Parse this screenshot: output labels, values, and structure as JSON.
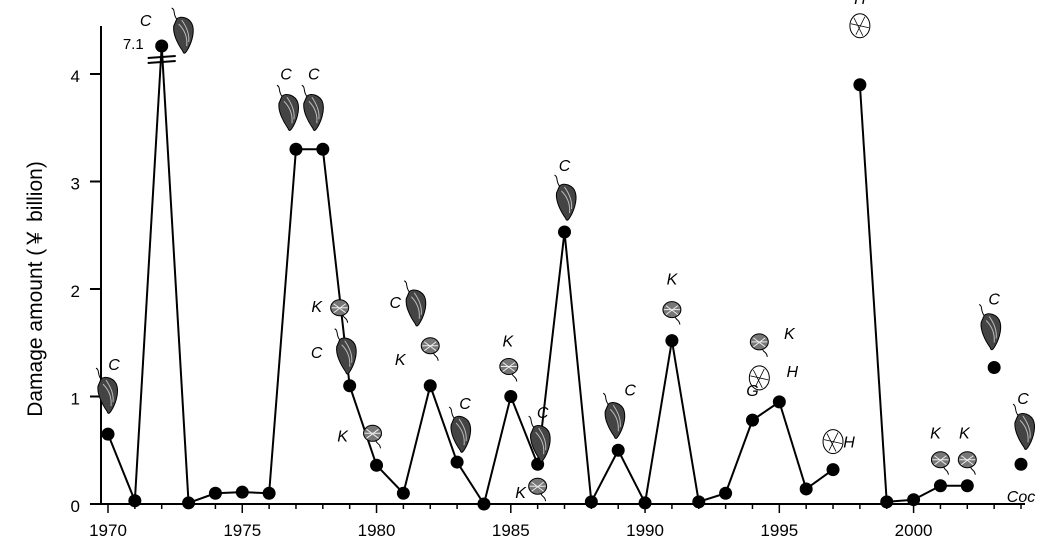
{
  "chart_data": {
    "type": "line",
    "title": "",
    "xlabel": "",
    "ylabel": "Damage amount (￥ billion)",
    "xlim": [
      1970,
      2004
    ],
    "ylim": [
      0,
      4
    ],
    "x_ticks": [
      1970,
      1975,
      1980,
      1985,
      1990,
      1995,
      2000
    ],
    "y_ticks": [
      0,
      1,
      2,
      3,
      4
    ],
    "axis_break_label": "7.1",
    "grid": false,
    "series": [
      {
        "x": [
          1970,
          1971,
          1972,
          1973,
          1974,
          1975,
          1976,
          1977,
          1978,
          1979,
          1980,
          1981,
          1982,
          1983,
          1984,
          1985,
          1986,
          1987,
          1988,
          1989,
          1990,
          1991,
          1992,
          1993,
          1994,
          1995,
          1996,
          1997,
          1998,
          1999,
          2000,
          2001,
          2002,
          2003,
          2004
        ],
        "y": [
          0.65,
          0.03,
          7.1,
          0.01,
          0.1,
          0.11,
          0.1,
          3.3,
          3.3,
          1.1,
          0.36,
          0.1,
          1.1,
          0.39,
          0.0,
          1.0,
          0.37,
          2.53,
          0.02,
          0.5,
          0.01,
          1.52,
          0.02,
          0.1,
          0.78,
          0.95,
          0.14,
          0.32,
          3.9,
          0.02,
          0.04,
          0.17,
          0.17,
          1.27,
          0.37
        ],
        "connected": [
          1,
          1,
          1,
          1,
          1,
          1,
          1,
          1,
          1,
          1,
          1,
          1,
          1,
          1,
          1,
          1,
          1,
          1,
          1,
          1,
          1,
          1,
          1,
          1,
          1,
          1,
          1,
          0,
          1,
          1,
          1,
          1,
          0,
          0
        ]
      }
    ],
    "annotations": [
      {
        "text": "C",
        "x": 1970,
        "y": 0.65
      },
      {
        "text": "C",
        "x": 1972,
        "y": 7.1
      },
      {
        "text": "C",
        "x": 1977,
        "y": 3.3
      },
      {
        "text": "C",
        "x": 1978,
        "y": 3.3
      },
      {
        "text": "K",
        "x": 1979,
        "y": 1.1
      },
      {
        "text": "C",
        "x": 1979,
        "y": 1.1
      },
      {
        "text": "K",
        "x": 1980,
        "y": 0.36
      },
      {
        "text": "C",
        "x": 1982,
        "y": 1.1
      },
      {
        "text": "K",
        "x": 1982,
        "y": 1.1
      },
      {
        "text": "C",
        "x": 1983,
        "y": 0.39
      },
      {
        "text": "K",
        "x": 1985,
        "y": 1.0
      },
      {
        "text": "C",
        "x": 1986,
        "y": 0.37
      },
      {
        "text": "K",
        "x": 1986,
        "y": 0.37
      },
      {
        "text": "C",
        "x": 1987,
        "y": 2.53
      },
      {
        "text": "C",
        "x": 1989,
        "y": 0.5
      },
      {
        "text": "K",
        "x": 1991,
        "y": 1.52
      },
      {
        "text": "G",
        "x": 1994,
        "y": 0.78
      },
      {
        "text": "K",
        "x": 1995,
        "y": 0.95
      },
      {
        "text": "H",
        "x": 1995,
        "y": 0.95
      },
      {
        "text": "H",
        "x": 1997,
        "y": 0.32
      },
      {
        "text": "H",
        "x": 1998,
        "y": 3.9
      },
      {
        "text": "K",
        "x": 2001,
        "y": 0.17
      },
      {
        "text": "K",
        "x": 2002,
        "y": 0.17
      },
      {
        "text": "C",
        "x": 2003,
        "y": 1.27
      },
      {
        "text": "C",
        "x": 2004,
        "y": 0.37
      },
      {
        "text": "Coc",
        "x": 2004,
        "y": 0.37
      }
    ],
    "icons": [
      {
        "name": "cochlodinium-icon",
        "x": 1970,
        "y": 0.65
      },
      {
        "name": "cochlodinium-icon",
        "x": 1972,
        "y": 7.1
      },
      {
        "name": "cochlodinium-icon",
        "x": 1977,
        "y": 3.3
      },
      {
        "name": "cochlodinium-icon",
        "x": 1978,
        "y": 3.3
      },
      {
        "name": "karenia-icon",
        "x": 1979,
        "y": 1.1
      },
      {
        "name": "cochlodinium-icon",
        "x": 1979,
        "y": 1.1
      },
      {
        "name": "karenia-icon",
        "x": 1980,
        "y": 0.36
      },
      {
        "name": "cochlodinium-icon",
        "x": 1982,
        "y": 1.1
      },
      {
        "name": "karenia-icon",
        "x": 1982,
        "y": 1.1
      },
      {
        "name": "cochlodinium-icon",
        "x": 1983,
        "y": 0.39
      },
      {
        "name": "karenia-icon",
        "x": 1985,
        "y": 1.0
      },
      {
        "name": "cochlodinium-icon",
        "x": 1986,
        "y": 0.37
      },
      {
        "name": "karenia-icon",
        "x": 1986,
        "y": 0.37
      },
      {
        "name": "cochlodinium-icon",
        "x": 1987,
        "y": 2.53
      },
      {
        "name": "cochlodinium-icon",
        "x": 1989,
        "y": 0.5
      },
      {
        "name": "karenia-icon",
        "x": 1991,
        "y": 1.52
      },
      {
        "name": "karenia-icon",
        "x": 1995,
        "y": 0.95
      },
      {
        "name": "heterocapsa-icon",
        "x": 1995,
        "y": 0.95
      },
      {
        "name": "heterocapsa-icon",
        "x": 1997,
        "y": 0.32
      },
      {
        "name": "heterocapsa-icon",
        "x": 1998,
        "y": 3.9
      },
      {
        "name": "karenia-icon",
        "x": 2001,
        "y": 0.17
      },
      {
        "name": "karenia-icon",
        "x": 2002,
        "y": 0.17
      },
      {
        "name": "cochlodinium-icon",
        "x": 2003,
        "y": 1.27
      },
      {
        "name": "cochlodinium-icon",
        "x": 2004,
        "y": 0.37
      }
    ]
  }
}
